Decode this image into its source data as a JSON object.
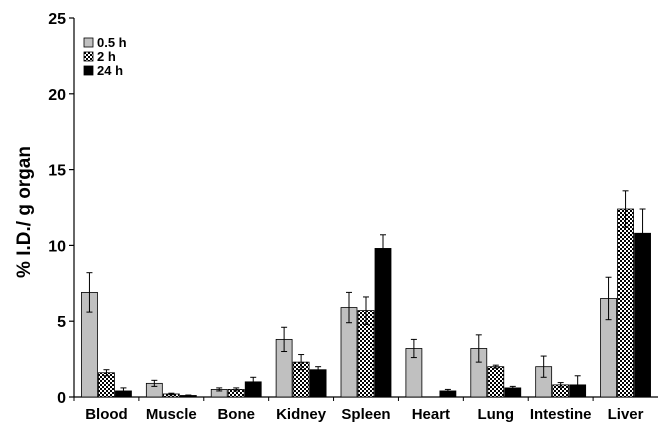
{
  "chart_data": {
    "type": "bar",
    "title": "",
    "xlabel": "",
    "ylabel": "% I.D./ g organ",
    "ylim": [
      0,
      25
    ],
    "yticks": [
      "0",
      "5",
      "10",
      "15",
      "20",
      "25"
    ],
    "grid": false,
    "legend_position": "top-left",
    "categories": [
      "Blood",
      "Muscle",
      "Bone",
      "Kidney",
      "Spleen",
      "Heart",
      "Lung",
      "Intestine",
      "Liver"
    ],
    "series": [
      {
        "name": "0.5 h",
        "color": "#c0c0c0",
        "pattern": "solid",
        "values": [
          6.9,
          0.9,
          0.5,
          3.8,
          5.9,
          3.2,
          3.2,
          2.0,
          6.5
        ],
        "errors": [
          1.3,
          0.2,
          0.1,
          0.8,
          1.0,
          0.6,
          0.9,
          0.7,
          1.4
        ]
      },
      {
        "name": "2 h",
        "color": "#000000",
        "pattern": "checker",
        "values": [
          1.6,
          0.2,
          0.5,
          2.3,
          5.7,
          0.0,
          2.0,
          0.8,
          12.4
        ],
        "errors": [
          0.2,
          0.05,
          0.1,
          0.5,
          0.9,
          0.0,
          0.1,
          0.15,
          1.2
        ]
      },
      {
        "name": "24 h",
        "color": "#000000",
        "pattern": "solid",
        "values": [
          0.4,
          0.1,
          1.0,
          1.8,
          9.8,
          0.4,
          0.6,
          0.8,
          10.8
        ],
        "errors": [
          0.2,
          0.03,
          0.3,
          0.2,
          0.9,
          0.1,
          0.1,
          0.6,
          1.6
        ]
      }
    ]
  }
}
